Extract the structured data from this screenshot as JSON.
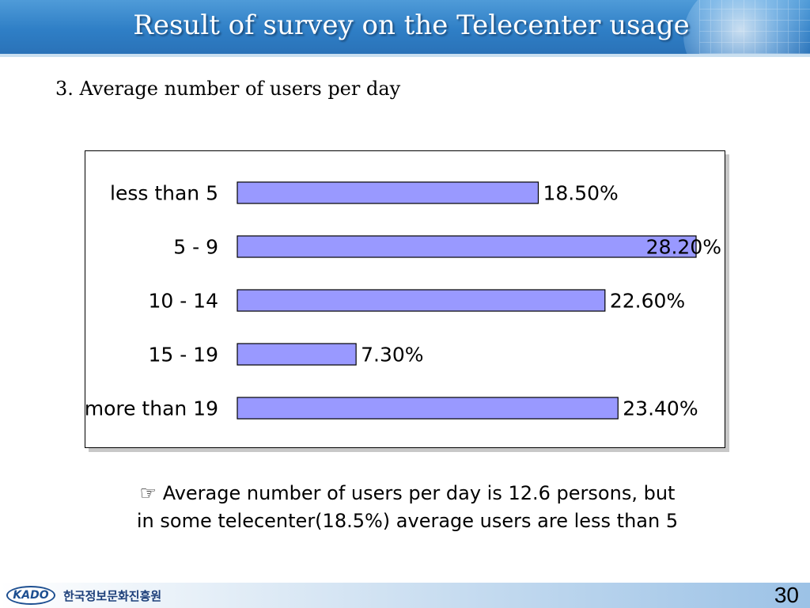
{
  "header": {
    "title": "Result of survey on the Telecenter usage"
  },
  "section": {
    "subtitle": "3. Average number of users per day"
  },
  "chart_data": {
    "type": "bar",
    "orientation": "horizontal",
    "categories": [
      "less than 5",
      "5 - 9",
      "10  - 14",
      "15  -  19",
      "more than 19"
    ],
    "values": [
      18.5,
      28.2,
      22.6,
      7.3,
      23.4
    ],
    "value_labels": [
      "18.50%",
      "28.20%",
      "22.60%",
      "7.30%",
      "23.40%"
    ],
    "unit": "%",
    "xlim": [
      0,
      28.2
    ],
    "bar_color": "#9999ff",
    "grid": false,
    "legend": "none"
  },
  "note": {
    "line1": "☞ Average number of users per day is 12.6 persons, but",
    "line2": "in some telecenter(18.5%) average users are less than 5"
  },
  "footer": {
    "logo_text": "KADO",
    "org_name": "한국정보문화진흥원",
    "page_number": "30"
  },
  "colors": {
    "header_blue": "#2f7fc6",
    "title_text": "#ffffff",
    "bar_fill": "#9999ff"
  }
}
